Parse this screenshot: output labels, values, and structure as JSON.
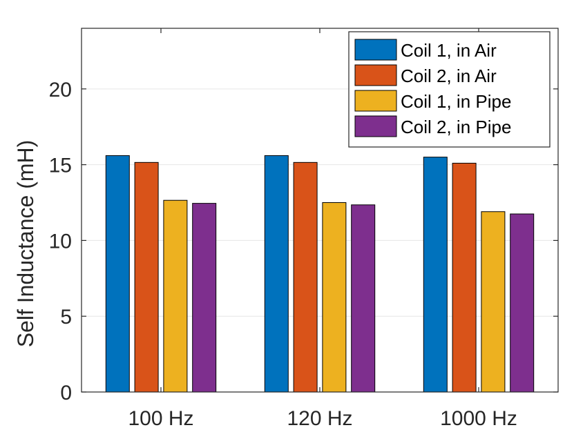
{
  "chart_data": {
    "type": "bar",
    "title": "",
    "xlabel": "",
    "ylabel": "Self Inductance (mH)",
    "categories": [
      "100 Hz",
      "120 Hz",
      "1000 Hz"
    ],
    "ylim": [
      0,
      24
    ],
    "yticks": [
      0,
      5,
      10,
      15,
      20
    ],
    "grid": true,
    "legend_position": "top-right",
    "series": [
      {
        "name": "Coil 1, in Air",
        "color": "#0072BD",
        "values": [
          15.6,
          15.6,
          15.5
        ]
      },
      {
        "name": "Coil 2, in Air",
        "color": "#D95319",
        "values": [
          15.15,
          15.15,
          15.1
        ]
      },
      {
        "name": "Coil 1, in Pipe",
        "color": "#EDB120",
        "values": [
          12.65,
          12.5,
          11.9
        ]
      },
      {
        "name": "Coil 2, in Pipe",
        "color": "#7E2F8E",
        "values": [
          12.45,
          12.35,
          11.75
        ]
      }
    ]
  }
}
